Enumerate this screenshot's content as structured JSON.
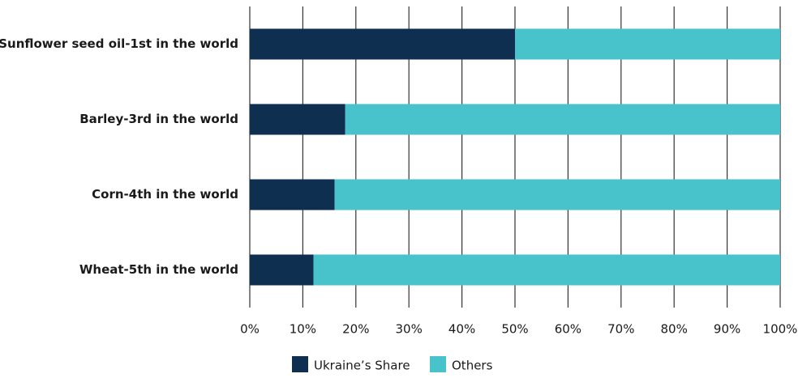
{
  "chart_data": {
    "type": "stacked-bar-horizontal",
    "categories": [
      "Sunflower seed oil-1st in the world",
      "Barley-3rd in the world",
      "Corn-4th in the world",
      "Wheat-5th in the world"
    ],
    "series": [
      {
        "name": "Ukraine’s Share",
        "color": "#0f2f50",
        "values": [
          50,
          18,
          16,
          12
        ]
      },
      {
        "name": "Others",
        "color": "#48c3cb",
        "values": [
          50,
          82,
          84,
          88
        ]
      }
    ],
    "xlim": [
      0,
      100
    ],
    "xticks": [
      {
        "value": 0,
        "label": "0%"
      },
      {
        "value": 10,
        "label": "10%"
      },
      {
        "value": 20,
        "label": "20%"
      },
      {
        "value": 30,
        "label": "30%"
      },
      {
        "value": 40,
        "label": "40%"
      },
      {
        "value": 50,
        "label": "50%"
      },
      {
        "value": 60,
        "label": "60%"
      },
      {
        "value": 70,
        "label": "70%"
      },
      {
        "value": 80,
        "label": "80%"
      },
      {
        "value": 90,
        "label": "90%"
      },
      {
        "value": 100,
        "label": "100%"
      }
    ],
    "grid": true
  }
}
